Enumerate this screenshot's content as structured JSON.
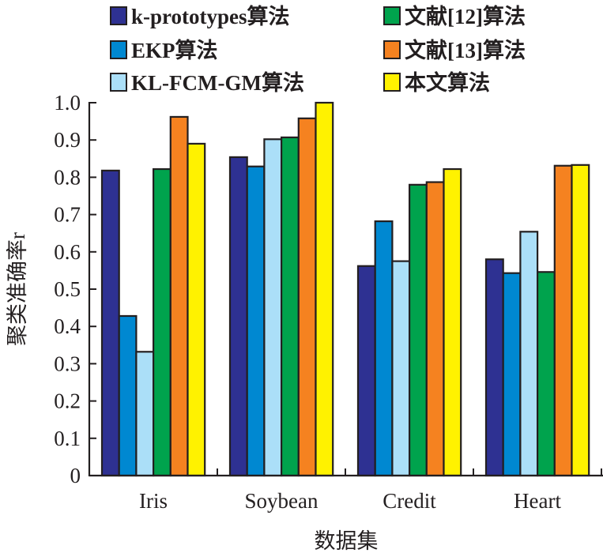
{
  "chart_data": {
    "type": "bar",
    "title": "",
    "xlabel": "数据集",
    "ylabel": "聚类准确率r",
    "ylim": [
      0,
      1.0
    ],
    "yticks": [
      "0",
      "0.1",
      "0.2",
      "0.3",
      "0.4",
      "0.5",
      "0.6",
      "0.7",
      "0.8",
      "0.9",
      "1.0"
    ],
    "grid": false,
    "legend_position": "top",
    "categories": [
      "Iris",
      "Soybean",
      "Credit",
      "Heart"
    ],
    "series": [
      {
        "name": "k-prototypes算法",
        "color": "#2e3192",
        "values": [
          0.818,
          0.854,
          0.562,
          0.58
        ]
      },
      {
        "name": "EKP算法",
        "color": "#0088d1",
        "values": [
          0.428,
          0.829,
          0.682,
          0.543
        ]
      },
      {
        "name": "KL-FCM-GM算法",
        "color": "#abdff8",
        "values": [
          0.332,
          0.902,
          0.575,
          0.654
        ]
      },
      {
        "name": "文献[12]算法",
        "color": "#00a34d",
        "values": [
          0.822,
          0.907,
          0.78,
          0.546
        ]
      },
      {
        "name": "文献[13]算法",
        "color": "#f58220",
        "values": [
          0.962,
          0.958,
          0.787,
          0.831
        ]
      },
      {
        "name": "本文算法",
        "color": "#fff200",
        "values": [
          0.89,
          1.0,
          0.822,
          0.833
        ]
      }
    ]
  }
}
